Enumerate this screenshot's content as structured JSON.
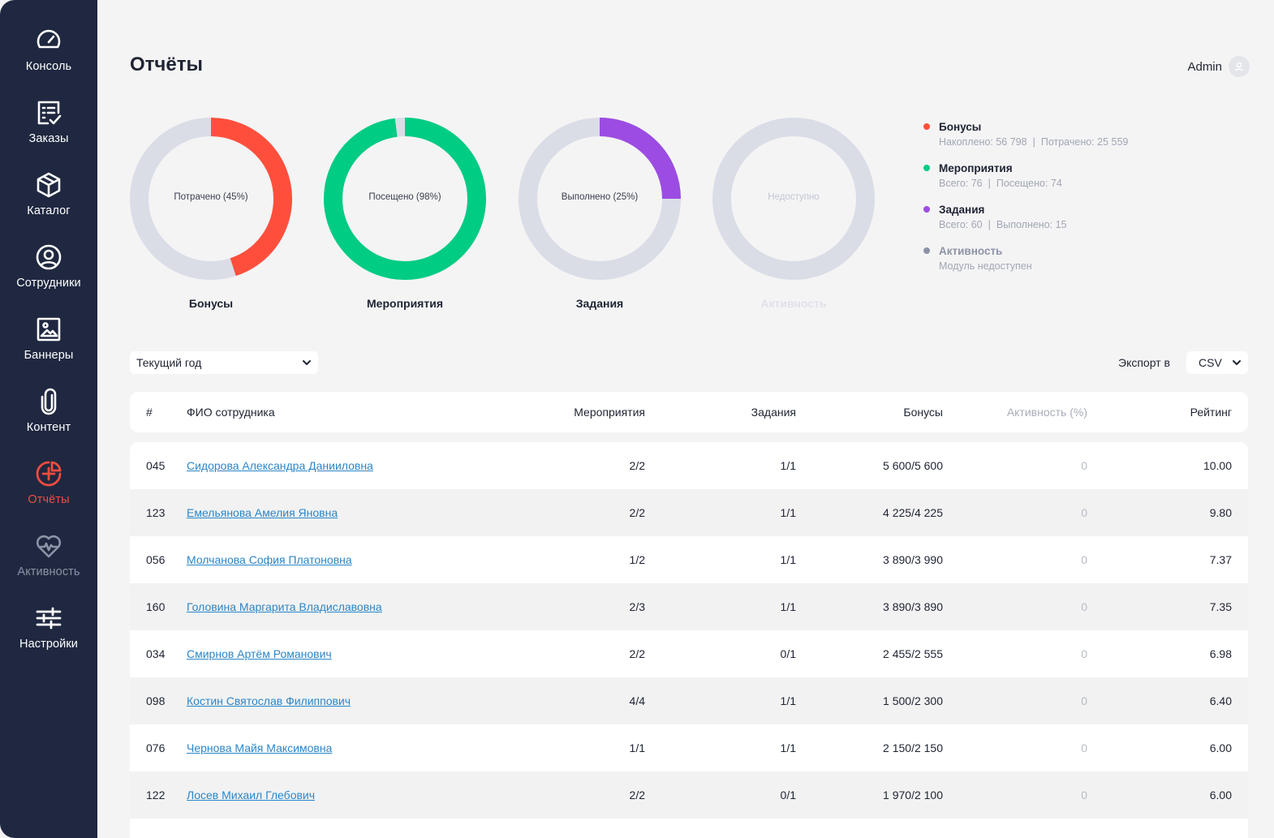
{
  "sidebar": {
    "items": [
      {
        "label": "Консоль",
        "icon": "speedometer-icon"
      },
      {
        "label": "Заказы",
        "icon": "checklist-icon"
      },
      {
        "label": "Каталог",
        "icon": "box-icon"
      },
      {
        "label": "Сотрудники",
        "icon": "user-circle-icon"
      },
      {
        "label": "Баннеры",
        "icon": "image-icon"
      },
      {
        "label": "Контент",
        "icon": "paperclip-icon"
      },
      {
        "label": "Отчёты",
        "icon": "pie-chart-icon"
      },
      {
        "label": "Активность",
        "icon": "heart-pulse-icon"
      },
      {
        "label": "Настройки",
        "icon": "sliders-icon"
      }
    ],
    "active": "Отчёты"
  },
  "header": {
    "title": "Отчёты",
    "user": "Admin"
  },
  "colors": {
    "sidebar_bg": "#1f2840",
    "accent_red": "#f04c3f",
    "bonus": "#ff4f3c",
    "events": "#00cc83",
    "tasks": "#9c4ce2",
    "activity": "#8d93a6",
    "track": "#dadde6",
    "link": "#2b86c8"
  },
  "donuts": [
    {
      "title": "Бонусы",
      "center": "Потрачено (45%)",
      "percent": 45,
      "color": "#ff4f3c",
      "enabled": true
    },
    {
      "title": "Мероприятия",
      "center": "Посещено (98%)",
      "percent": 98,
      "color": "#00cc83",
      "enabled": true
    },
    {
      "title": "Задания",
      "center": "Выполнено (25%)",
      "percent": 25,
      "color": "#9c4ce2",
      "enabled": true
    },
    {
      "title": "Активность",
      "center": "Недоступно",
      "percent": 0,
      "color": "#dadde6",
      "enabled": false
    }
  ],
  "legend": [
    {
      "name": "Бонусы",
      "color": "#ff4f3c",
      "sub1": "Накоплено: 56 798",
      "sub2": "Потрачено: 25 559"
    },
    {
      "name": "Мероприятия",
      "color": "#00cc83",
      "sub1": "Всего: 76",
      "sub2": "Посещено: 74"
    },
    {
      "name": "Задания",
      "color": "#9c4ce2",
      "sub1": "Всего: 60",
      "sub2": "Выполнено: 15"
    },
    {
      "name": "Активность",
      "color": "#8d93a6",
      "sub1": "Модуль недоступен",
      "sub2": ""
    }
  ],
  "filters": {
    "period": "Текущий год",
    "export_label": "Экспорт в",
    "export_format": "CSV"
  },
  "table": {
    "headers": {
      "num": "#",
      "name": "ФИО сотрудника",
      "events": "Мероприятия",
      "tasks": "Задания",
      "bonus": "Бонусы",
      "activity": "Активность (%)",
      "rating": "Рейтинг"
    },
    "rows": [
      {
        "num": "045",
        "name": "Сидорова Александра Данииловна",
        "events": "2/2",
        "tasks": "1/1",
        "bonus": "5 600/5 600",
        "activity": "0",
        "rating": "10.00"
      },
      {
        "num": "123",
        "name": "Емельянова Амелия Яновна",
        "events": "2/2",
        "tasks": "1/1",
        "bonus": "4 225/4 225",
        "activity": "0",
        "rating": "9.80"
      },
      {
        "num": "056",
        "name": "Молчанова София Платоновна",
        "events": "1/2",
        "tasks": "1/1",
        "bonus": "3 890/3 990",
        "activity": "0",
        "rating": "7.37"
      },
      {
        "num": "160",
        "name": "Головина Маргарита Владиславовна",
        "events": "2/3",
        "tasks": "1/1",
        "bonus": "3 890/3 890",
        "activity": "0",
        "rating": "7.35"
      },
      {
        "num": "034",
        "name": "Смирнов Артём Романович",
        "events": "2/2",
        "tasks": "0/1",
        "bonus": "2 455/2 555",
        "activity": "0",
        "rating": "6.98"
      },
      {
        "num": "098",
        "name": "Костин Святослав Филиппович",
        "events": "4/4",
        "tasks": "1/1",
        "bonus": "1 500/2 300",
        "activity": "0",
        "rating": "6.40"
      },
      {
        "num": "076",
        "name": "Чернова Майя Максимовна",
        "events": "1/1",
        "tasks": "1/1",
        "bonus": "2 150/2 150",
        "activity": "0",
        "rating": "6.00"
      },
      {
        "num": "122",
        "name": "Лосев Михаил Глебович",
        "events": "2/2",
        "tasks": "0/1",
        "bonus": "1 970/2 100",
        "activity": "0",
        "rating": "6.00"
      }
    ]
  }
}
